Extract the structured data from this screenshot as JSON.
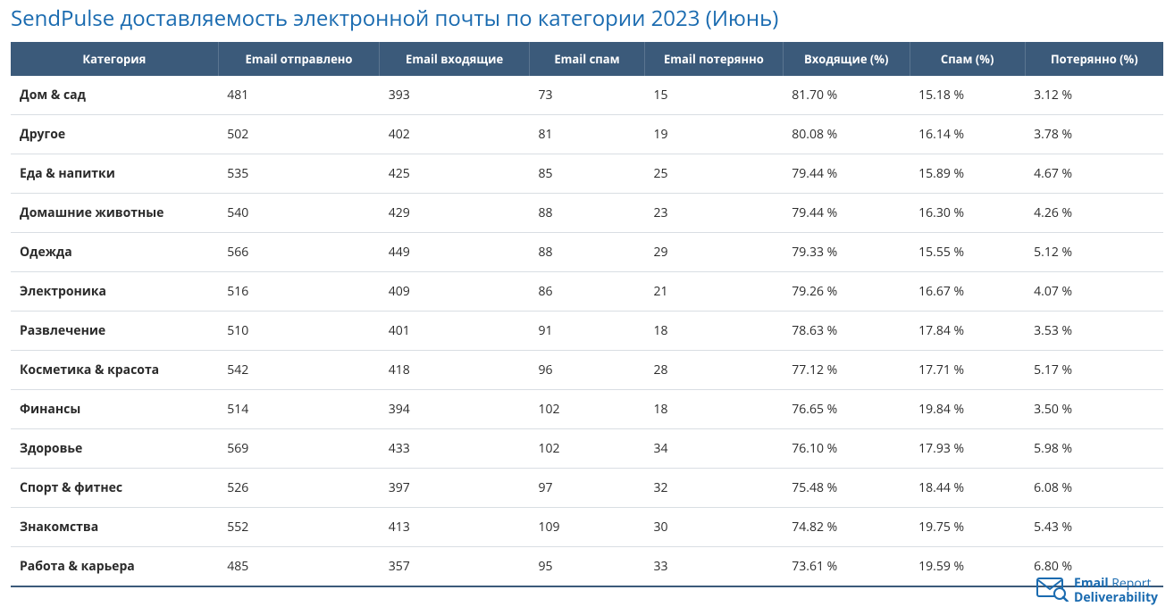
{
  "title": "SendPulse доставляемость электронной почты по категории 2023 (Июнь)",
  "colors": {
    "title": "#1a6bb0",
    "header_bg": "#3b5a7a",
    "header_text": "#ffffff",
    "row_border": "#d9dee3",
    "text": "#2b2b2b",
    "logo": "#1a6bb0",
    "background": "#ffffff"
  },
  "font": {
    "family": "Segoe UI, Open Sans, Arial, sans-serif",
    "title_size": 24,
    "header_size": 13,
    "cell_size": 14
  },
  "table": {
    "type": "table",
    "columns": [
      {
        "key": "cat",
        "label": "Категория",
        "width_pct": 18,
        "align": "left",
        "bold": true
      },
      {
        "key": "sent",
        "label": "Email отправлено",
        "width_pct": 14,
        "align": "left"
      },
      {
        "key": "inbox",
        "label": "Email входящие",
        "width_pct": 13,
        "align": "left"
      },
      {
        "key": "spam",
        "label": "Email спам",
        "width_pct": 10,
        "align": "left"
      },
      {
        "key": "lost",
        "label": "Email потерянно",
        "width_pct": 12,
        "align": "left"
      },
      {
        "key": "inbox_pct",
        "label": "Входящие (%)",
        "width_pct": 11,
        "align": "left"
      },
      {
        "key": "spam_pct",
        "label": "Спам (%)",
        "width_pct": 10,
        "align": "left"
      },
      {
        "key": "lost_pct",
        "label": "Потерянно (%)",
        "width_pct": 12,
        "align": "left"
      }
    ],
    "rows": [
      [
        "Дом & сад",
        "481",
        "393",
        "73",
        "15",
        "81.70 %",
        "15.18 %",
        "3.12 %"
      ],
      [
        "Другое",
        "502",
        "402",
        "81",
        "19",
        "80.08 %",
        "16.14 %",
        "3.78 %"
      ],
      [
        "Еда & напитки",
        "535",
        "425",
        "85",
        "25",
        "79.44 %",
        "15.89 %",
        "4.67 %"
      ],
      [
        "Домашние животные",
        "540",
        "429",
        "88",
        "23",
        "79.44 %",
        "16.30 %",
        "4.26 %"
      ],
      [
        "Одежда",
        "566",
        "449",
        "88",
        "29",
        "79.33 %",
        "15.55 %",
        "5.12 %"
      ],
      [
        "Электроника",
        "516",
        "409",
        "86",
        "21",
        "79.26 %",
        "16.67 %",
        "4.07 %"
      ],
      [
        "Развлечение",
        "510",
        "401",
        "91",
        "18",
        "78.63 %",
        "17.84 %",
        "3.53 %"
      ],
      [
        "Косметика & красота",
        "542",
        "418",
        "96",
        "28",
        "77.12 %",
        "17.71 %",
        "5.17 %"
      ],
      [
        "Финансы",
        "514",
        "394",
        "102",
        "18",
        "76.65 %",
        "19.84 %",
        "3.50 %"
      ],
      [
        "Здоровье",
        "569",
        "433",
        "102",
        "34",
        "76.10 %",
        "17.93 %",
        "5.98 %"
      ],
      [
        "Спорт & фитнес",
        "526",
        "397",
        "97",
        "32",
        "75.48 %",
        "18.44 %",
        "6.08 %"
      ],
      [
        "Знакомства",
        "552",
        "413",
        "109",
        "30",
        "74.82 %",
        "19.75 %",
        "5.43 %"
      ],
      [
        "Работа & карьера",
        "485",
        "357",
        "95",
        "33",
        "73.61 %",
        "19.59 %",
        "6.80 %"
      ]
    ]
  },
  "footer": {
    "line1_a": "Email",
    "line1_b": "Report",
    "line2": "Deliverability",
    "icon": "envelope-magnifier-icon"
  }
}
